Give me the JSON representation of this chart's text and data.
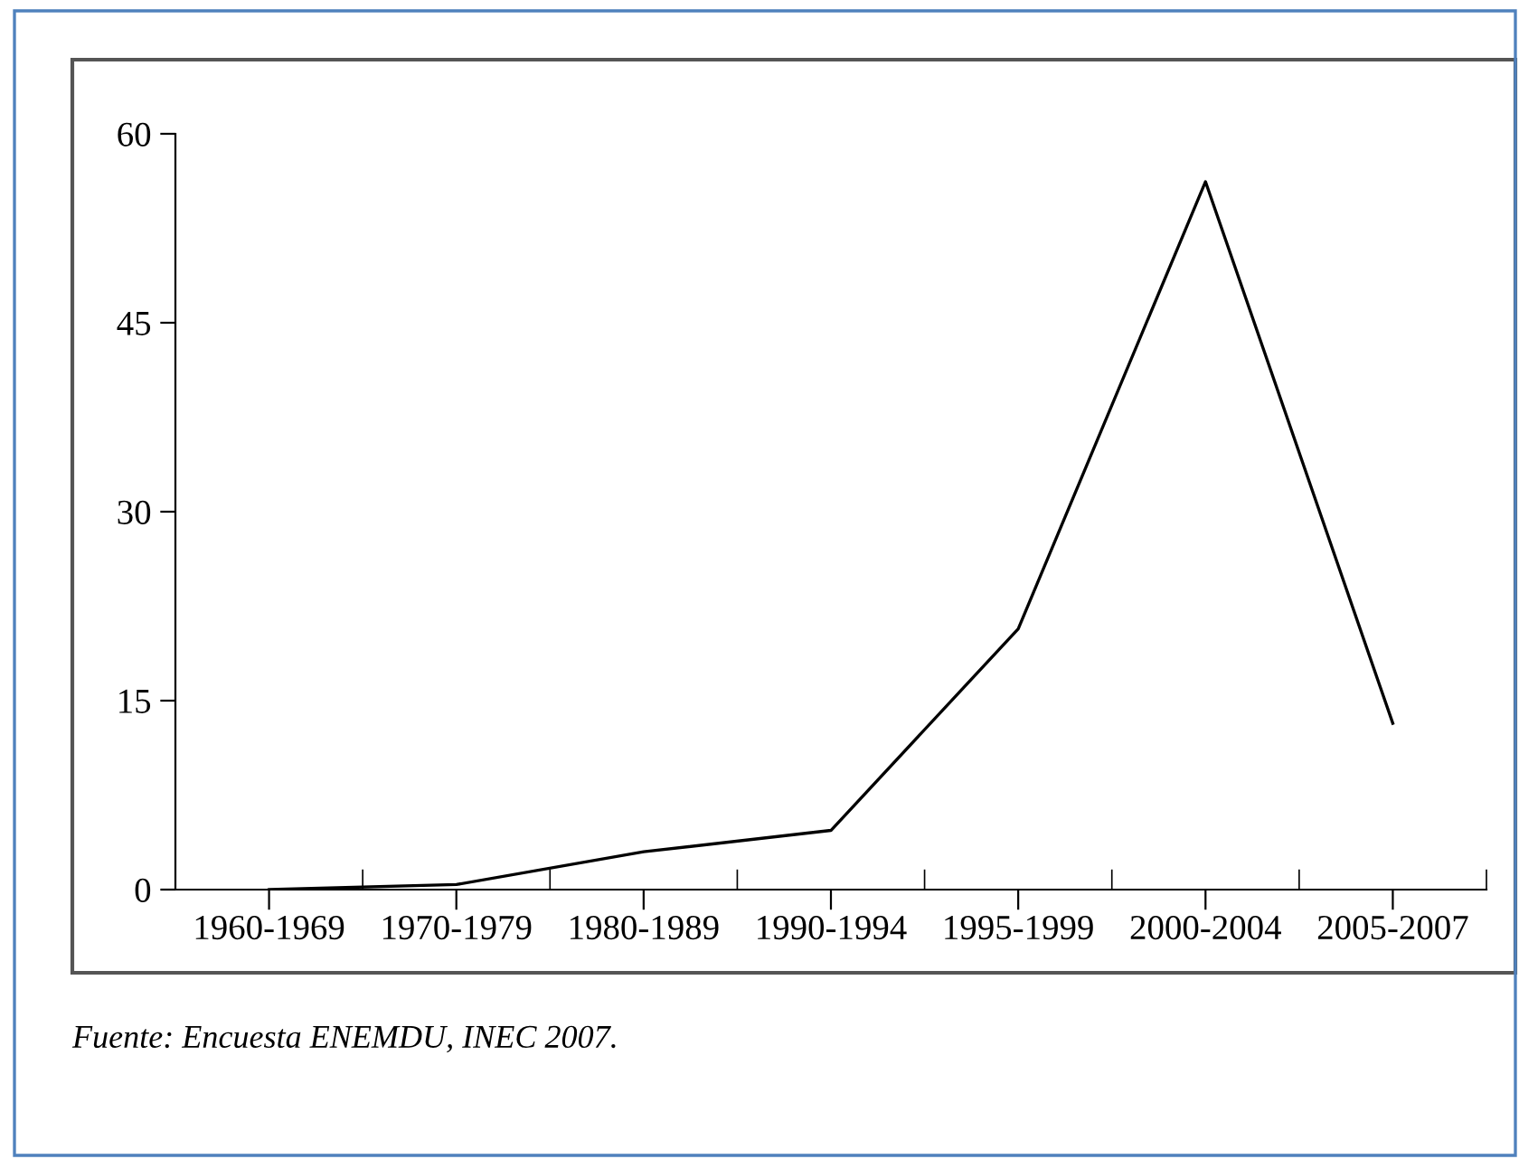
{
  "chart_data": {
    "type": "line",
    "categories": [
      "1960-1969",
      "1970-1979",
      "1980-1989",
      "1990-1994",
      "1995-1999",
      "2000-2004",
      "2005-2007"
    ],
    "series": [
      {
        "color": "#000000",
        "values": [
          0,
          0.4,
          3,
          4.7,
          20.7,
          56.2,
          13.2
        ]
      }
    ],
    "ylim": [
      0,
      60
    ],
    "yticks": [
      0,
      15,
      30,
      45,
      60
    ],
    "grid": false,
    "legend": false,
    "marker": "none",
    "line_style": "solid",
    "annotations": [
      "Fuente: Encuesta ENEMDU, INEC 2007."
    ]
  }
}
